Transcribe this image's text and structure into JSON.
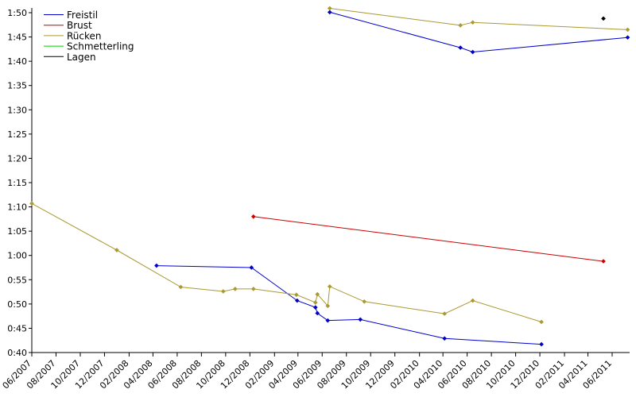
{
  "chart_data": {
    "type": "line",
    "title": "",
    "xlabel": "",
    "ylabel": "",
    "grid": false,
    "legend_position": "top-left",
    "x_range": [
      "2007-06-01",
      "2011-07-15"
    ],
    "y_range": [
      "0:40",
      "1:50"
    ],
    "x_ticks": [
      "06/2007",
      "08/2007",
      "10/2007",
      "12/2007",
      "02/2008",
      "04/2008",
      "06/2008",
      "08/2008",
      "10/2008",
      "12/2008",
      "02/2009",
      "04/2009",
      "06/2009",
      "08/2009",
      "10/2009",
      "12/2009",
      "02/2010",
      "04/2010",
      "06/2010",
      "08/2010",
      "10/2010",
      "12/2010",
      "02/2011",
      "04/2011",
      "06/2011"
    ],
    "y_ticks": [
      "0:40",
      "0:45",
      "0:50",
      "0:55",
      "1:00",
      "1:05",
      "1:10",
      "1:15",
      "1:20",
      "1:25",
      "1:30",
      "1:35",
      "1:40",
      "1:45",
      "1:50"
    ],
    "series": [
      {
        "name": "Freistil",
        "color": "#0000cc",
        "segments": [
          [
            {
              "x": "2008-04-10",
              "y": "0:57.9"
            },
            {
              "x": "2008-12-05",
              "y": "0:57.5"
            },
            {
              "x": "2009-03-30",
              "y": "0:50.7"
            },
            {
              "x": "2009-05-15",
              "y": "0:49.3"
            },
            {
              "x": "2009-05-20",
              "y": "0:48.1"
            },
            {
              "x": "2009-06-15",
              "y": "0:46.6"
            },
            {
              "x": "2009-09-05",
              "y": "0:46.8"
            },
            {
              "x": "2010-04-05",
              "y": "0:42.9"
            },
            {
              "x": "2010-12-05",
              "y": "0:41.7"
            }
          ],
          [
            {
              "x": "2009-06-20",
              "y": "1:50.1"
            },
            {
              "x": "2010-05-15",
              "y": "1:42.8"
            },
            {
              "x": "2010-06-15",
              "y": "1:41.9"
            },
            {
              "x": "2011-07-10",
              "y": "1:44.9"
            }
          ]
        ]
      },
      {
        "name": "Brust",
        "color": "#cc0000",
        "segments": [
          [
            {
              "x": "2008-12-10",
              "y": "1:08.0"
            },
            {
              "x": "2011-05-10",
              "y": "0:58.8"
            }
          ]
        ]
      },
      {
        "name": "Rücken",
        "color": "#aa9933",
        "segments": [
          [
            {
              "x": "2007-06-01",
              "y": "1:10.7"
            },
            {
              "x": "2008-01-01",
              "y": "1:01.1"
            },
            {
              "x": "2008-06-10",
              "y": "0:53.5"
            },
            {
              "x": "2008-09-25",
              "y": "0:52.6"
            },
            {
              "x": "2008-10-25",
              "y": "0:53.1"
            },
            {
              "x": "2008-12-10",
              "y": "0:53.1"
            },
            {
              "x": "2009-03-28",
              "y": "0:51.9"
            },
            {
              "x": "2009-05-15",
              "y": "0:50.3"
            },
            {
              "x": "2009-05-20",
              "y": "0:52.0"
            },
            {
              "x": "2009-06-15",
              "y": "0:49.6"
            },
            {
              "x": "2009-06-20",
              "y": "0:53.6"
            },
            {
              "x": "2009-09-15",
              "y": "0:50.5"
            },
            {
              "x": "2010-04-05",
              "y": "0:48.0"
            },
            {
              "x": "2010-06-15",
              "y": "0:50.7"
            },
            {
              "x": "2010-12-05",
              "y": "0:46.3"
            }
          ],
          [
            {
              "x": "2009-06-20",
              "y": "1:50.9"
            },
            {
              "x": "2010-05-15",
              "y": "1:47.4"
            },
            {
              "x": "2010-06-15",
              "y": "1:48.0"
            },
            {
              "x": "2011-07-10",
              "y": "1:46.5"
            }
          ]
        ]
      },
      {
        "name": "Schmetterling",
        "color": "#00cc00",
        "segments": []
      },
      {
        "name": "Lagen",
        "color": "#000000",
        "segments": [
          [
            {
              "x": "2011-05-10",
              "y": "1:48.8"
            }
          ]
        ]
      }
    ]
  }
}
